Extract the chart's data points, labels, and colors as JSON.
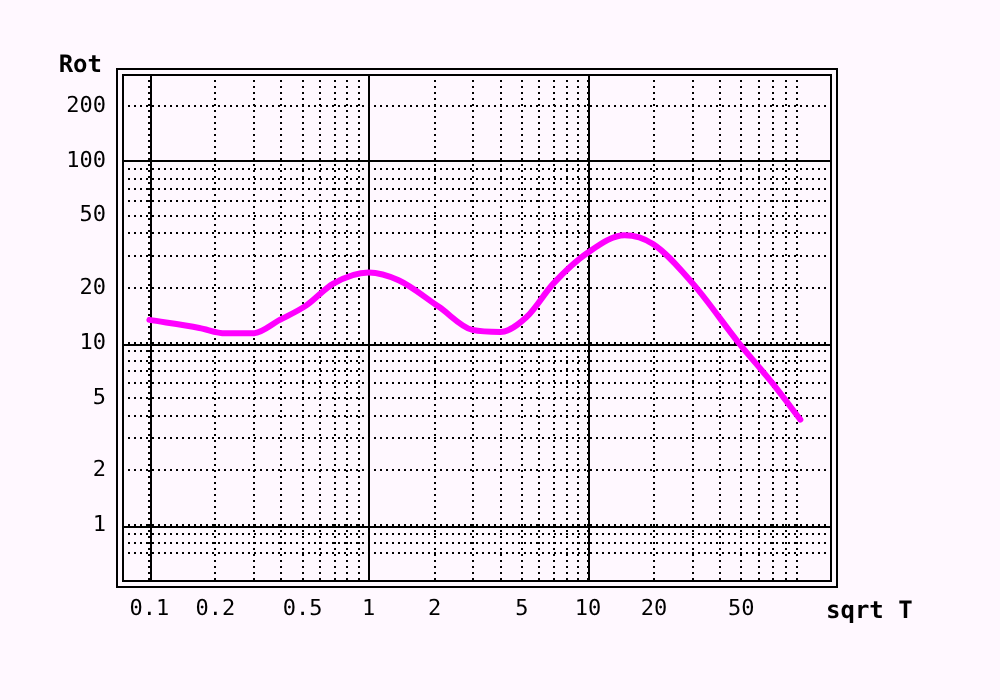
{
  "chart_data": {
    "type": "line",
    "xlabel": "sqrt T",
    "ylabel": "Rot",
    "log": "xy",
    "grid": true,
    "legend": false,
    "marker": "none",
    "line_style": "solid",
    "x": [
      0.1,
      0.169,
      0.222,
      0.296,
      0.393,
      0.52,
      0.69,
      1,
      1.37,
      2.09,
      2.97,
      3.98,
      5.25,
      6.95,
      10,
      14.7,
      19.8,
      30.1,
      48.9,
      69.5,
      93
    ],
    "series": [
      {
        "color": "#ff00ff",
        "values": [
          13.4,
          12.1,
          11.3,
          11.3,
          13.4,
          16.1,
          21.2,
          24.4,
          22.1,
          15.8,
          11.8,
          11.5,
          13.9,
          21.2,
          31.4,
          39.1,
          35,
          21.2,
          9.95,
          6.0,
          3.8
        ]
      }
    ],
    "xlim": [
      0.075,
      127
    ],
    "ylim": [
      0.5,
      300
    ],
    "xticks": [
      0.1,
      0.2,
      {
        "value": 0.3,
        "label": null
      },
      {
        "value": 0.4,
        "label": null
      },
      0.5,
      {
        "value": 0.6,
        "label": null
      },
      {
        "value": 0.7,
        "label": null
      },
      {
        "value": 0.8,
        "label": null
      },
      {
        "value": 0.9,
        "label": null
      },
      1,
      2,
      {
        "value": 3,
        "label": null
      },
      {
        "value": 4,
        "label": null
      },
      5,
      {
        "value": 6,
        "label": null
      },
      {
        "value": 7,
        "label": null
      },
      {
        "value": 8,
        "label": null
      },
      {
        "value": 9,
        "label": null
      },
      10,
      20,
      {
        "value": 30,
        "label": null
      },
      {
        "value": 40,
        "label": null
      },
      50,
      {
        "value": 60,
        "label": null
      },
      {
        "value": 70,
        "label": null
      },
      {
        "value": 80,
        "label": null
      },
      {
        "value": 90,
        "label": null
      }
    ],
    "yticks": [
      {
        "value": 0.7,
        "label": null
      },
      {
        "value": 0.8,
        "label": null
      },
      {
        "value": 0.9,
        "label": null
      },
      1,
      2,
      {
        "value": 3,
        "label": null
      },
      {
        "value": 4,
        "label": null
      },
      5,
      {
        "value": 6,
        "label": null
      },
      {
        "value": 7,
        "label": null
      },
      {
        "value": 8,
        "label": null
      },
      {
        "value": 9,
        "label": null
      },
      10,
      20,
      {
        "value": 30,
        "label": null
      },
      {
        "value": 40,
        "label": null
      },
      50,
      {
        "value": 60,
        "label": null
      },
      {
        "value": 70,
        "label": null
      },
      {
        "value": 80,
        "label": null
      },
      {
        "value": 90,
        "label": null
      },
      100,
      200
    ]
  }
}
